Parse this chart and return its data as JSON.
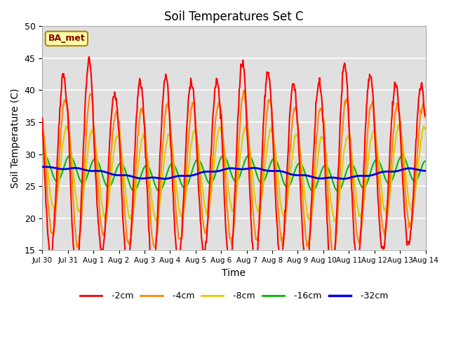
{
  "title": "Soil Temperatures Set C",
  "xlabel": "Time",
  "ylabel": "Soil Temperature (C)",
  "ylim": [
    15,
    50
  ],
  "background_color": "#e0e0e0",
  "legend_label": "BA_met",
  "x_tick_labels": [
    "Jul 30",
    "Jul 31",
    "Aug 1",
    "Aug 2",
    "Aug 3",
    "Aug 4",
    "Aug 5",
    "Aug 6",
    "Aug 7",
    "Aug 8",
    "Aug 9",
    "Aug 10",
    "Aug 11",
    "Aug 12",
    "Aug 13",
    "Aug 14"
  ],
  "colors": {
    "-2cm": "#ff0000",
    "-4cm": "#ff8800",
    "-8cm": "#ddcc00",
    "-16cm": "#00bb00",
    "-32cm": "#0000dd"
  },
  "line_widths": {
    "-2cm": 1.5,
    "-4cm": 1.5,
    "-8cm": 1.5,
    "-16cm": 1.5,
    "-32cm": 2.0
  }
}
